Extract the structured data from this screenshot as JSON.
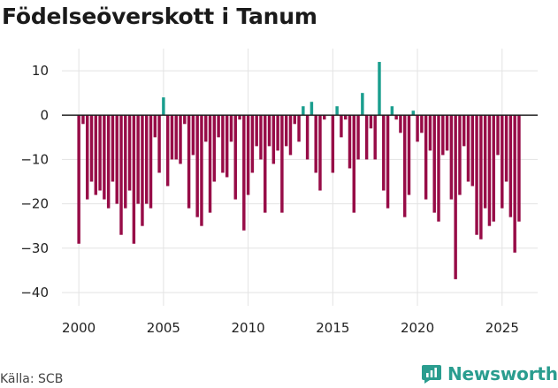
{
  "chart_data": {
    "type": "bar",
    "title": "Födelseöverskott i Tanum",
    "xlabel": "",
    "ylabel": "",
    "x_range": [
      1999.0,
      2027.1
    ],
    "ylim": [
      -43,
      15
    ],
    "yticks": [
      10,
      0,
      -10,
      -20,
      -30,
      -40
    ],
    "ytick_labels": [
      "10",
      "0",
      "−10",
      "−20",
      "−30",
      "−40"
    ],
    "xticks": [
      2000,
      2005,
      2010,
      2015,
      2020,
      2025
    ],
    "xtick_labels": [
      "2000",
      "2005",
      "2010",
      "2015",
      "2020",
      "2025"
    ],
    "bar_period": "quarter",
    "start_year": 2000,
    "values": [
      -29,
      -2,
      -19,
      -15,
      -18,
      -17,
      -19,
      -21,
      -15,
      -20,
      -27,
      -21,
      -17,
      -29,
      -20,
      -25,
      -20,
      -21,
      -5,
      -13,
      4,
      -16,
      -10,
      -10,
      -11,
      -2,
      -21,
      -9,
      -23,
      -25,
      -6,
      -22,
      -15,
      -5,
      -13,
      -14,
      -6,
      -19,
      -1,
      -26,
      -18,
      -13,
      -7,
      -10,
      -22,
      -7,
      -11,
      -8,
      -22,
      -7,
      -9,
      -2,
      -6,
      2,
      -10,
      3,
      -13,
      -17,
      -1,
      0,
      -13,
      2,
      -5,
      -1,
      -12,
      -22,
      -10,
      5,
      -10,
      -3,
      -10,
      12,
      -17,
      -21,
      2,
      -1,
      -4,
      -23,
      -18,
      1,
      -6,
      -4,
      -19,
      -8,
      -22,
      -24,
      -9,
      -8,
      -19,
      -37,
      -18,
      -7,
      -15,
      -16,
      -27,
      -28,
      -21,
      -25,
      -24,
      -9,
      -21,
      -15,
      -23,
      -31,
      -24
    ],
    "colors": {
      "positive": "#1a9e8e",
      "negative": "#970c47",
      "zero_line": "#222222",
      "grid": "#e3e3e3"
    }
  },
  "footer": {
    "source": "Källa: SCB",
    "brand": "Newsworthy"
  }
}
